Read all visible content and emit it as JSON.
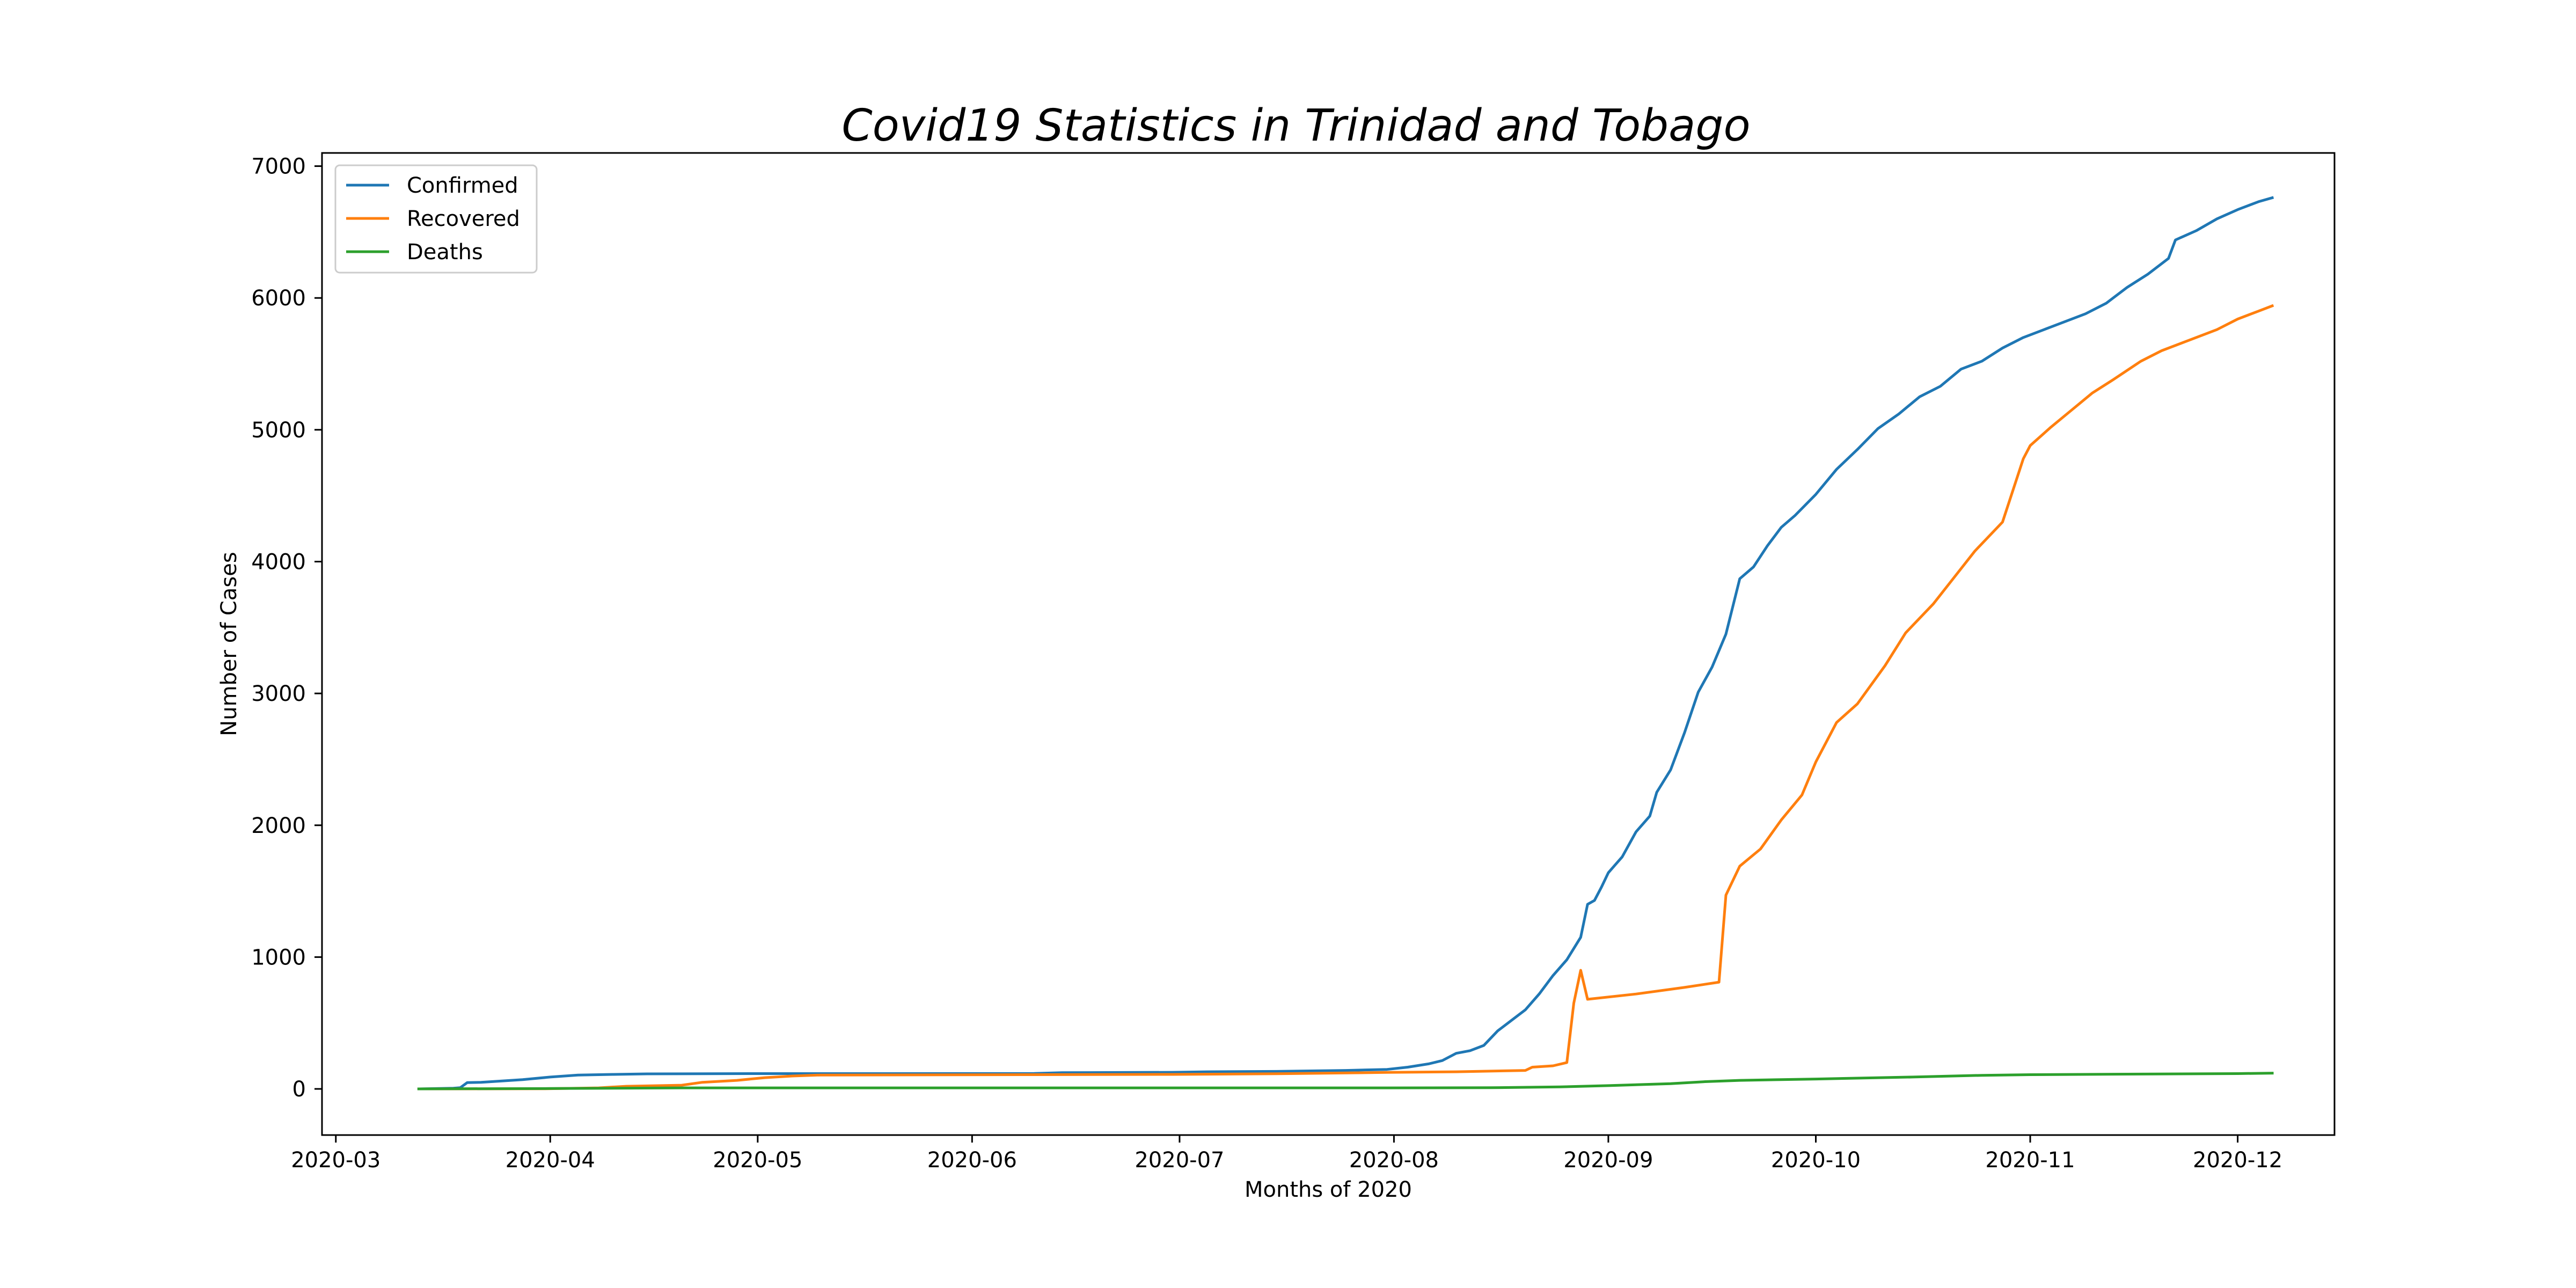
{
  "chart_data": {
    "type": "line",
    "title": "Covid19 Statistics in Trinidad and Tobago",
    "xlabel": "Months of 2020",
    "ylabel": "Number of Cases",
    "xlim": [
      "2020-02-28",
      "2020-12-15"
    ],
    "ylim": [
      -350,
      7100
    ],
    "x_ticks": [
      "2020-03",
      "2020-04",
      "2020-05",
      "2020-06",
      "2020-07",
      "2020-08",
      "2020-09",
      "2020-10",
      "2020-11",
      "2020-12"
    ],
    "y_ticks": [
      0,
      1000,
      2000,
      3000,
      4000,
      5000,
      6000,
      7000
    ],
    "grid": false,
    "legend_position": "upper-left",
    "series": [
      {
        "name": "Confirmed",
        "color": "#1f77b4",
        "points": [
          [
            "2020-03-13",
            0
          ],
          [
            "2020-03-18",
            5
          ],
          [
            "2020-03-19",
            9
          ],
          [
            "2020-03-20",
            48
          ],
          [
            "2020-03-22",
            50
          ],
          [
            "2020-03-25",
            60
          ],
          [
            "2020-03-28",
            70
          ],
          [
            "2020-04-01",
            90
          ],
          [
            "2020-04-05",
            105
          ],
          [
            "2020-04-10",
            110
          ],
          [
            "2020-04-15",
            114
          ],
          [
            "2020-04-30",
            116
          ],
          [
            "2020-05-20",
            116
          ],
          [
            "2020-06-10",
            117
          ],
          [
            "2020-06-14",
            123
          ],
          [
            "2020-06-30",
            126
          ],
          [
            "2020-07-05",
            130
          ],
          [
            "2020-07-15",
            133
          ],
          [
            "2020-07-25",
            140
          ],
          [
            "2020-07-31",
            148
          ],
          [
            "2020-08-03",
            165
          ],
          [
            "2020-08-06",
            190
          ],
          [
            "2020-08-08",
            215
          ],
          [
            "2020-08-10",
            270
          ],
          [
            "2020-08-12",
            290
          ],
          [
            "2020-08-14",
            330
          ],
          [
            "2020-08-16",
            440
          ],
          [
            "2020-08-18",
            520
          ],
          [
            "2020-08-20",
            600
          ],
          [
            "2020-08-22",
            720
          ],
          [
            "2020-08-24",
            860
          ],
          [
            "2020-08-26",
            980
          ],
          [
            "2020-08-28",
            1150
          ],
          [
            "2020-08-29",
            1400
          ],
          [
            "2020-08-30",
            1430
          ],
          [
            "2020-08-31",
            1530
          ],
          [
            "2020-09-01",
            1640
          ],
          [
            "2020-09-02",
            1700
          ],
          [
            "2020-09-03",
            1760
          ],
          [
            "2020-09-05",
            1950
          ],
          [
            "2020-09-07",
            2070
          ],
          [
            "2020-09-08",
            2250
          ],
          [
            "2020-09-10",
            2420
          ],
          [
            "2020-09-12",
            2700
          ],
          [
            "2020-09-14",
            3010
          ],
          [
            "2020-09-16",
            3200
          ],
          [
            "2020-09-18",
            3450
          ],
          [
            "2020-09-20",
            3870
          ],
          [
            "2020-09-22",
            3960
          ],
          [
            "2020-09-24",
            4120
          ],
          [
            "2020-09-26",
            4260
          ],
          [
            "2020-09-28",
            4350
          ],
          [
            "2020-10-01",
            4510
          ],
          [
            "2020-10-04",
            4700
          ],
          [
            "2020-10-07",
            4850
          ],
          [
            "2020-10-10",
            5010
          ],
          [
            "2020-10-13",
            5120
          ],
          [
            "2020-10-16",
            5250
          ],
          [
            "2020-10-19",
            5330
          ],
          [
            "2020-10-22",
            5460
          ],
          [
            "2020-10-25",
            5520
          ],
          [
            "2020-10-28",
            5620
          ],
          [
            "2020-10-31",
            5700
          ],
          [
            "2020-11-03",
            5760
          ],
          [
            "2020-11-06",
            5820
          ],
          [
            "2020-11-09",
            5880
          ],
          [
            "2020-11-12",
            5960
          ],
          [
            "2020-11-15",
            6080
          ],
          [
            "2020-11-18",
            6180
          ],
          [
            "2020-11-21",
            6300
          ],
          [
            "2020-11-22",
            6440
          ],
          [
            "2020-11-25",
            6510
          ],
          [
            "2020-11-28",
            6600
          ],
          [
            "2020-12-01",
            6670
          ],
          [
            "2020-12-04",
            6730
          ],
          [
            "2020-12-06",
            6760
          ]
        ]
      },
      {
        "name": "Recovered",
        "color": "#ff7f0e",
        "points": [
          [
            "2020-03-13",
            0
          ],
          [
            "2020-03-31",
            1
          ],
          [
            "2020-04-08",
            8
          ],
          [
            "2020-04-12",
            20
          ],
          [
            "2020-04-20",
            28
          ],
          [
            "2020-04-23",
            50
          ],
          [
            "2020-04-28",
            65
          ],
          [
            "2020-05-02",
            85
          ],
          [
            "2020-05-06",
            98
          ],
          [
            "2020-05-10",
            105
          ],
          [
            "2020-06-10",
            108
          ],
          [
            "2020-06-30",
            110
          ],
          [
            "2020-07-15",
            115
          ],
          [
            "2020-07-31",
            125
          ],
          [
            "2020-08-10",
            130
          ],
          [
            "2020-08-20",
            140
          ],
          [
            "2020-08-21",
            165
          ],
          [
            "2020-08-24",
            175
          ],
          [
            "2020-08-26",
            200
          ],
          [
            "2020-08-27",
            650
          ],
          [
            "2020-08-28",
            900
          ],
          [
            "2020-08-29",
            680
          ],
          [
            "2020-09-05",
            720
          ],
          [
            "2020-09-12",
            770
          ],
          [
            "2020-09-17",
            810
          ],
          [
            "2020-09-18",
            1470
          ],
          [
            "2020-09-20",
            1690
          ],
          [
            "2020-09-23",
            1820
          ],
          [
            "2020-09-26",
            2040
          ],
          [
            "2020-09-29",
            2230
          ],
          [
            "2020-10-01",
            2480
          ],
          [
            "2020-10-04",
            2780
          ],
          [
            "2020-10-07",
            2920
          ],
          [
            "2020-10-11",
            3210
          ],
          [
            "2020-10-14",
            3460
          ],
          [
            "2020-10-18",
            3680
          ],
          [
            "2020-10-21",
            3880
          ],
          [
            "2020-10-24",
            4080
          ],
          [
            "2020-10-28",
            4300
          ],
          [
            "2020-10-31",
            4780
          ],
          [
            "2020-11-01",
            4880
          ],
          [
            "2020-11-04",
            5020
          ],
          [
            "2020-11-07",
            5150
          ],
          [
            "2020-11-10",
            5280
          ],
          [
            "2020-11-13",
            5380
          ],
          [
            "2020-11-17",
            5520
          ],
          [
            "2020-11-20",
            5600
          ],
          [
            "2020-11-24",
            5680
          ],
          [
            "2020-11-28",
            5760
          ],
          [
            "2020-12-01",
            5840
          ],
          [
            "2020-12-04",
            5900
          ],
          [
            "2020-12-06",
            5940
          ]
        ]
      },
      {
        "name": "Deaths",
        "color": "#2ca02c",
        "points": [
          [
            "2020-03-13",
            0
          ],
          [
            "2020-04-01",
            3
          ],
          [
            "2020-04-20",
            8
          ],
          [
            "2020-05-31",
            8
          ],
          [
            "2020-06-30",
            8
          ],
          [
            "2020-07-31",
            8
          ],
          [
            "2020-08-15",
            9
          ],
          [
            "2020-08-25",
            15
          ],
          [
            "2020-09-01",
            25
          ],
          [
            "2020-09-10",
            40
          ],
          [
            "2020-09-15",
            55
          ],
          [
            "2020-09-20",
            65
          ],
          [
            "2020-10-01",
            75
          ],
          [
            "2020-10-15",
            90
          ],
          [
            "2020-10-25",
            103
          ],
          [
            "2020-11-01",
            108
          ],
          [
            "2020-11-15",
            112
          ],
          [
            "2020-12-01",
            116
          ],
          [
            "2020-12-06",
            120
          ]
        ]
      }
    ]
  }
}
